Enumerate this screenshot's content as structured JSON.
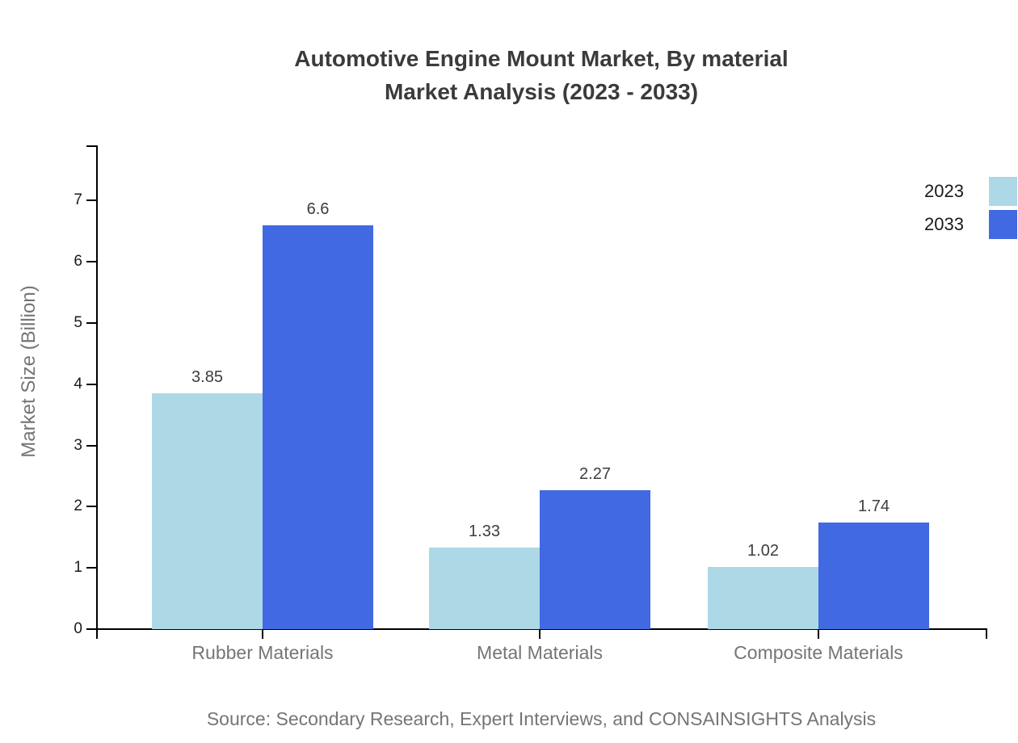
{
  "title": {
    "line1": "Automotive Engine Mount Market, By material",
    "line2": "Market Analysis (2023 - 2033)"
  },
  "source": "Source: Secondary Research, Expert Interviews, and CONSAINSIGHTS Analysis",
  "chart_data": {
    "type": "bar",
    "title": "Automotive Engine Mount Market, By material Market Analysis (2023 - 2033)",
    "categories": [
      "Rubber Materials",
      "Metal Materials",
      "Composite Materials"
    ],
    "series": [
      {
        "name": "2023",
        "color": "#ADD8E6",
        "values": [
          3.85,
          1.33,
          1.02
        ]
      },
      {
        "name": "2033",
        "color": "#4169E1",
        "values": [
          6.6,
          2.27,
          1.74
        ]
      }
    ],
    "xlabel": "",
    "ylabel": "Market Size (Billion)",
    "ylim": [
      0,
      7.9
    ],
    "yticks": [
      0,
      1,
      2,
      3,
      4,
      5,
      6,
      7
    ],
    "grid": false,
    "value_labels": true,
    "legend_position": "top-right"
  },
  "colors": {
    "series_2023": "#ADD8E6",
    "series_2033": "#4169E1",
    "axis": "#000000",
    "title_text": "#3b3b3b",
    "muted_text": "#757575",
    "value_text": "#3d3d3d"
  }
}
